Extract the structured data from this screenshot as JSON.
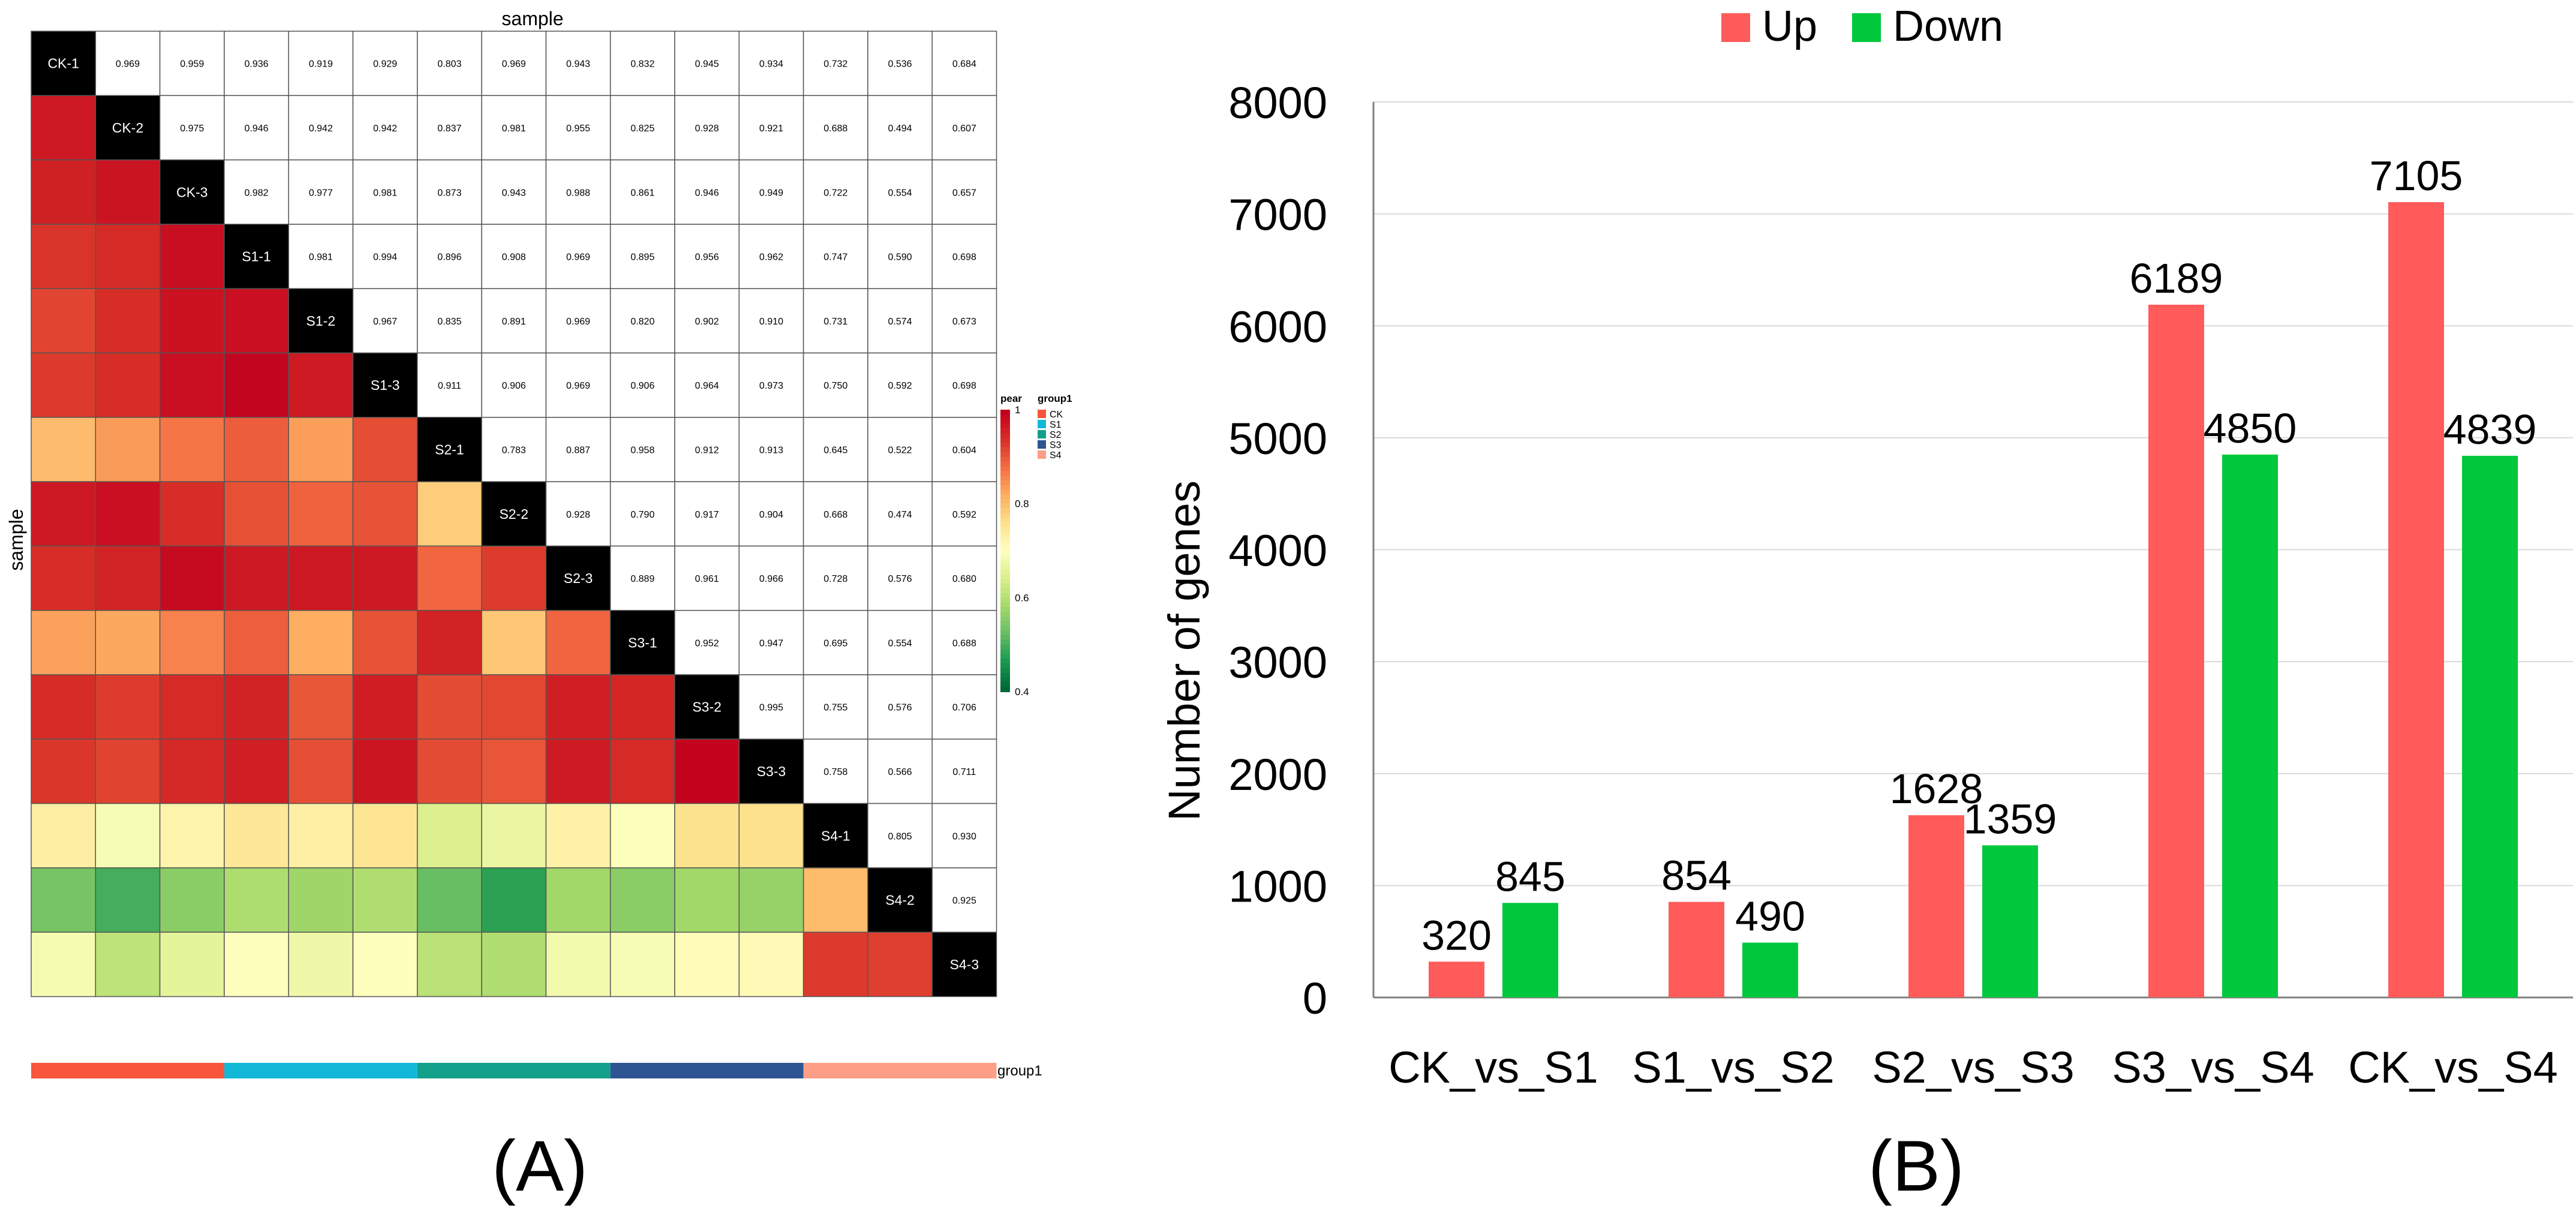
{
  "chart_data": [
    {
      "type": "heatmap",
      "title": "sample",
      "xlabel": "sample",
      "ylabel": "sample",
      "panel_label": "(A)",
      "samples": [
        "CK-1",
        "CK-2",
        "CK-3",
        "S1-1",
        "S1-2",
        "S1-3",
        "S2-1",
        "S2-2",
        "S2-3",
        "S3-1",
        "S3-2",
        "S3-3",
        "S4-1",
        "S4-2",
        "S4-3"
      ],
      "upper_values": [
        [
          "0.969",
          "0.959",
          "0.936",
          "0.919",
          "0.929",
          "0.803",
          "0.969",
          "0.943",
          "0.832",
          "0.945",
          "0.934",
          "0.732",
          "0.536",
          "0.684"
        ],
        [
          "0.975",
          "0.946",
          "0.942",
          "0.942",
          "0.837",
          "0.981",
          "0.955",
          "0.825",
          "0.928",
          "0.921",
          "0.688",
          "0.494",
          "0.607"
        ],
        [
          "0.982",
          "0.977",
          "0.981",
          "0.873",
          "0.943",
          "0.988",
          "0.861",
          "0.946",
          "0.949",
          "0.722",
          "0.554",
          "0.657"
        ],
        [
          "0.981",
          "0.994",
          "0.896",
          "0.908",
          "0.969",
          "0.895",
          "0.956",
          "0.962",
          "0.747",
          "0.590",
          "0.698"
        ],
        [
          "0.967",
          "0.835",
          "0.891",
          "0.969",
          "0.820",
          "0.902",
          "0.910",
          "0.731",
          "0.574",
          "0.673"
        ],
        [
          "0.911",
          "0.906",
          "0.969",
          "0.906",
          "0.964",
          "0.973",
          "0.750",
          "0.592",
          "0.698"
        ],
        [
          "0.783",
          "0.887",
          "0.958",
          "0.912",
          "0.913",
          "0.645",
          "0.522",
          "0.604"
        ],
        [
          "0.928",
          "0.790",
          "0.917",
          "0.904",
          "0.668",
          "0.474",
          "0.592"
        ],
        [
          "0.889",
          "0.961",
          "0.966",
          "0.728",
          "0.576",
          "0.680"
        ],
        [
          "0.952",
          "0.947",
          "0.695",
          "0.554",
          "0.688"
        ],
        [
          "0.995",
          "0.755",
          "0.576",
          "0.706"
        ],
        [
          "0.758",
          "0.566",
          "0.711"
        ],
        [
          "0.805",
          "0.930"
        ],
        [
          "0.925"
        ]
      ],
      "color_scale": {
        "title": "pear",
        "min": 0.4,
        "max": 1,
        "ticks": [
          "1",
          "0.8",
          "0.6",
          "0.4"
        ],
        "colors": [
          "#006837",
          "#1a9850",
          "#66bd63",
          "#a6d96a",
          "#d9ef8b",
          "#ffffbf",
          "#fee08b",
          "#fdae61",
          "#f46d43",
          "#d73027",
          "#c2001e"
        ]
      },
      "groups": {
        "title": "group1",
        "bar_label": "group1",
        "items": [
          {
            "name": "CK",
            "color": "#f8553a"
          },
          {
            "name": "S1",
            "color": "#12b8d8"
          },
          {
            "name": "S2",
            "color": "#12a08a"
          },
          {
            "name": "S3",
            "color": "#2d5591"
          },
          {
            "name": "S4",
            "color": "#fc9f86"
          }
        ]
      }
    },
    {
      "type": "bar",
      "panel_label": "(B)",
      "title": "",
      "xlabel": "",
      "ylabel": "Number of genes",
      "ylim": [
        0,
        8000
      ],
      "yticks": [
        "0",
        "1000",
        "2000",
        "3000",
        "4000",
        "5000",
        "6000",
        "7000",
        "8000"
      ],
      "categories": [
        "CK_vs_S1",
        "S1_vs_S2",
        "S2_vs_S3",
        "S3_vs_S4",
        "CK_vs_S4"
      ],
      "series": [
        {
          "name": "Up",
          "color": "#ff5b5b",
          "values": [
            320,
            854,
            1628,
            6189,
            7105
          ]
        },
        {
          "name": "Down",
          "color": "#00c83c",
          "values": [
            845,
            490,
            1359,
            4850,
            4839
          ]
        }
      ],
      "legend_position": "top",
      "grid": true
    }
  ]
}
